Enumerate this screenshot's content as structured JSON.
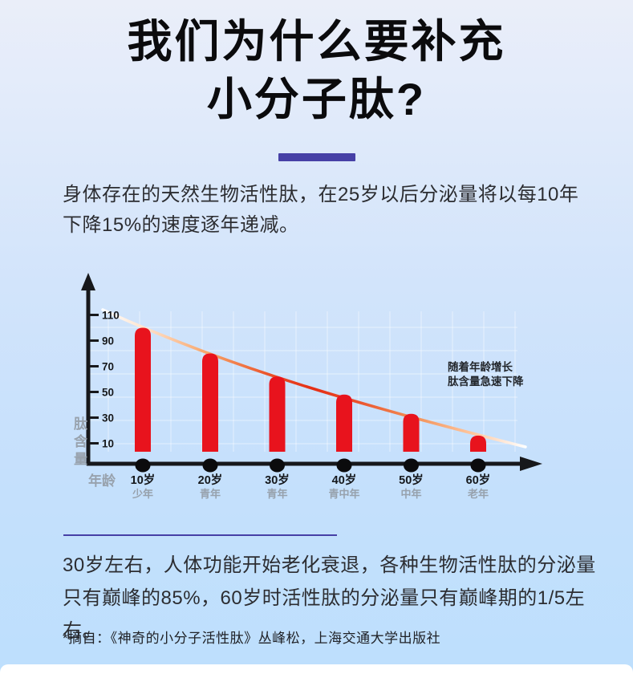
{
  "page": {
    "title_line1": "我们为什么要补充",
    "title_line2": "小分子肽?",
    "accent_color": "#4640a6",
    "intro_text": "身体存在的天然生物活性肽，在25岁以后分泌量将以每10年下降15%的速度逐年递减。",
    "conclusion_text": "30岁左右，人体功能开始老化衰退，各种生物活性肽的分泌量只有巅峰的85%，60岁时活性肽的分泌量只有巅峰期的1/5左右。",
    "footnote": "*摘自：《神奇的小分子活性肽》丛峰松，上海交通大学出版社"
  },
  "chart_data": {
    "type": "bar",
    "title": "",
    "xlabel": "年龄",
    "ylabel": "肽含量",
    "categories": [
      "10岁",
      "20岁",
      "30岁",
      "40岁",
      "50岁",
      "60岁"
    ],
    "category_sublabels": [
      "少年",
      "青年",
      "青年",
      "青中年",
      "中年",
      "老年"
    ],
    "values": [
      100,
      80,
      62,
      48,
      33,
      16
    ],
    "yticks": [
      110,
      90,
      70,
      50,
      30,
      10
    ],
    "ylim": [
      0,
      120
    ],
    "grid": true,
    "legend": false,
    "annotation_lines": [
      "随着年龄增长",
      "肽含量急速下降"
    ],
    "bar_color": "#e8131d",
    "axis_color": "#17181b",
    "dot_color": "#0b0b0d",
    "axis_text_gray": "#98a2ad",
    "trend_curve": "declining smooth curve overlaying bars, gradient white-orange-red-orange-white"
  }
}
